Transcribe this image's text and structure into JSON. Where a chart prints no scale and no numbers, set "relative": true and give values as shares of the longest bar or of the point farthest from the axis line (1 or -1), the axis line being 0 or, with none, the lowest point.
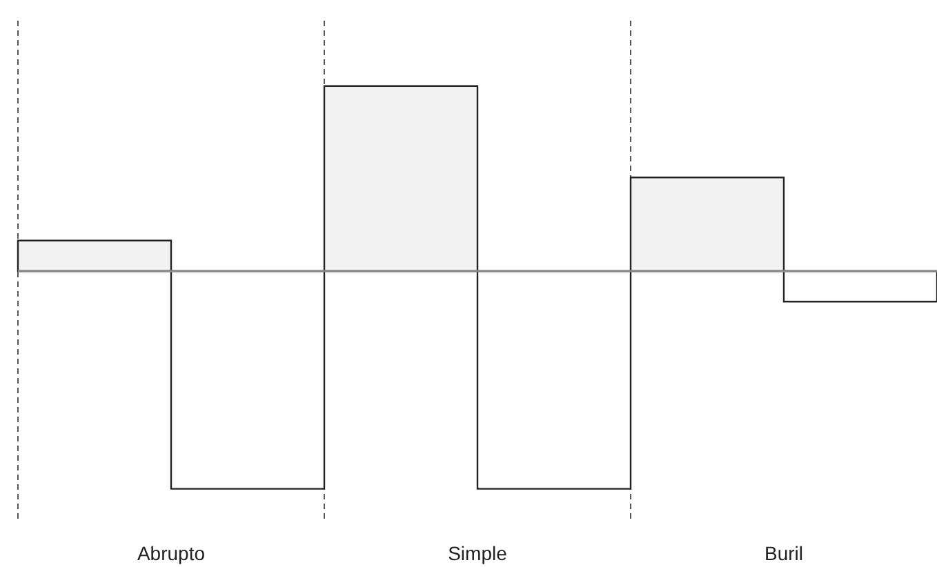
{
  "chart_data": {
    "type": "bar",
    "relative": true,
    "categories": [
      "Abrupto",
      "Simple",
      "Buril"
    ],
    "series": [
      {
        "color": "#f2f2f2",
        "values": [
          0.14,
          0.85,
          0.43
        ]
      },
      {
        "color": "#ffffff",
        "values": [
          -1,
          -1,
          -0.14
        ]
      }
    ],
    "grid": "x"
  }
}
